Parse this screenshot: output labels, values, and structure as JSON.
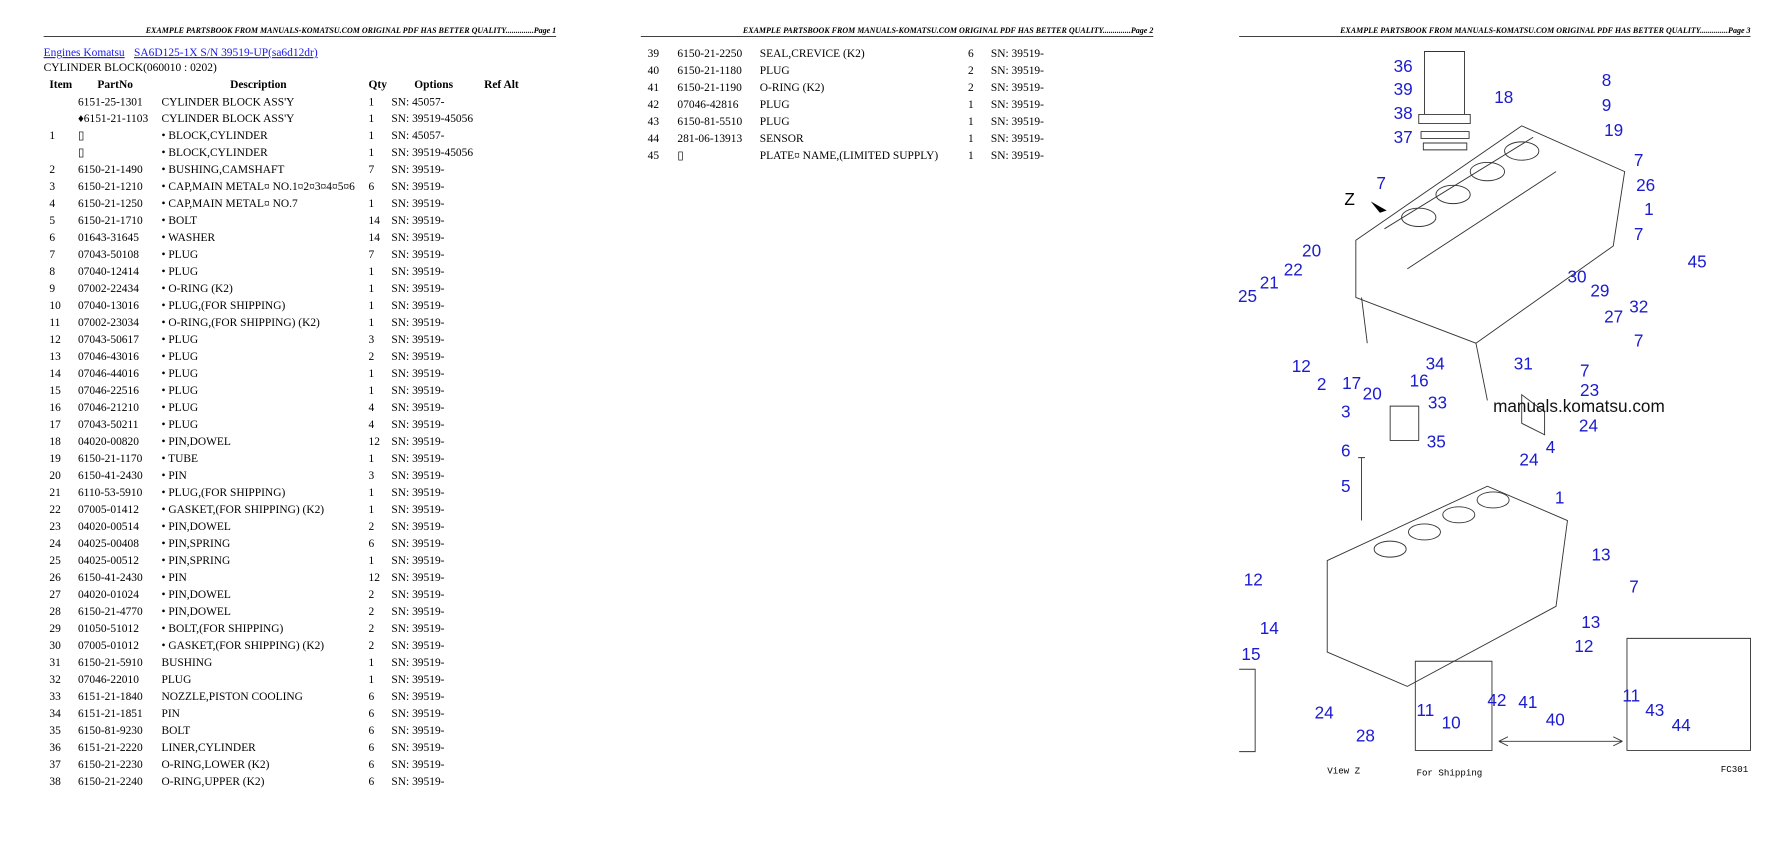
{
  "pages": [
    {
      "header": "EXAMPLE PARTSBOOK FROM MANUALS-KOMATSU.COM ORIGINAL PDF HAS BETTER QUALITY..............Page 1"
    },
    {
      "header": "EXAMPLE PARTSBOOK FROM MANUALS-KOMATSU.COM ORIGINAL PDF HAS BETTER QUALITY..............Page 2"
    },
    {
      "header": "EXAMPLE PARTSBOOK FROM MANUALS-KOMATSU.COM ORIGINAL PDF HAS BETTER QUALITY..............Page 3"
    }
  ],
  "breadcrumb": {
    "link1": "Engines Komatsu",
    "link2": "SA6D125-1X S/N 39519-UP(sa6d12dr)"
  },
  "subtitle": "CYLINDER BLOCK(060010 : 0202)",
  "table": {
    "columns": [
      "Item",
      "PartNo",
      "Description",
      "Qty",
      "Options",
      "Ref Alt"
    ],
    "rows": [
      [
        null,
        "6151-25-1301",
        "CYLINDER BLOCK ASS'Y",
        1,
        "SN: 45057-"
      ],
      [
        null,
        "♦6151-21-1103",
        "CYLINDER BLOCK ASS'Y",
        1,
        "SN: 39519-45056"
      ],
      [
        1,
        "▯",
        "• BLOCK,CYLINDER",
        1,
        "SN: 45057-"
      ],
      [
        null,
        "▯",
        "• BLOCK,CYLINDER",
        1,
        "SN: 39519-45056"
      ],
      [
        2,
        "6150-21-1490",
        "• BUSHING,CAMSHAFT",
        7,
        "SN: 39519-"
      ],
      [
        3,
        "6150-21-1210",
        "• CAP,MAIN METAL¤ NO.1¤2¤3¤4¤5¤6",
        6,
        "SN: 39519-"
      ],
      [
        4,
        "6150-21-1250",
        "• CAP,MAIN METAL¤ NO.7",
        1,
        "SN: 39519-"
      ],
      [
        5,
        "6150-21-1710",
        "• BOLT",
        14,
        "SN: 39519-"
      ],
      [
        6,
        "01643-31645",
        "• WASHER",
        14,
        "SN: 39519-"
      ],
      [
        7,
        "07043-50108",
        "• PLUG",
        7,
        "SN: 39519-"
      ],
      [
        8,
        "07040-12414",
        "• PLUG",
        1,
        "SN: 39519-"
      ],
      [
        9,
        "07002-22434",
        "• O-RING (K2)",
        1,
        "SN: 39519-"
      ],
      [
        10,
        "07040-13016",
        "• PLUG,(FOR SHIPPING)",
        1,
        "SN: 39519-"
      ],
      [
        11,
        "07002-23034",
        "• O-RING,(FOR SHIPPING) (K2)",
        1,
        "SN: 39519-"
      ],
      [
        12,
        "07043-50617",
        "• PLUG",
        3,
        "SN: 39519-"
      ],
      [
        13,
        "07046-43016",
        "• PLUG",
        2,
        "SN: 39519-"
      ],
      [
        14,
        "07046-44016",
        "• PLUG",
        1,
        "SN: 39519-"
      ],
      [
        15,
        "07046-22516",
        "• PLUG",
        1,
        "SN: 39519-"
      ],
      [
        16,
        "07046-21210",
        "• PLUG",
        4,
        "SN: 39519-"
      ],
      [
        17,
        "07043-50211",
        "• PLUG",
        4,
        "SN: 39519-"
      ],
      [
        18,
        "04020-00820",
        "• PIN,DOWEL",
        12,
        "SN: 39519-"
      ],
      [
        19,
        "6150-21-1170",
        "• TUBE",
        1,
        "SN: 39519-"
      ],
      [
        20,
        "6150-41-2430",
        "• PIN",
        3,
        "SN: 39519-"
      ],
      [
        21,
        "6110-53-5910",
        "• PLUG,(FOR SHIPPING)",
        1,
        "SN: 39519-"
      ],
      [
        22,
        "07005-01412",
        "• GASKET,(FOR SHIPPING) (K2)",
        1,
        "SN: 39519-"
      ],
      [
        23,
        "04020-00514",
        "• PIN,DOWEL",
        2,
        "SN: 39519-"
      ],
      [
        24,
        "04025-00408",
        "• PIN,SPRING",
        6,
        "SN: 39519-"
      ],
      [
        25,
        "04025-00512",
        "• PIN,SPRING",
        1,
        "SN: 39519-"
      ],
      [
        26,
        "6150-41-2430",
        "• PIN",
        12,
        "SN: 39519-"
      ],
      [
        27,
        "04020-01024",
        "• PIN,DOWEL",
        2,
        "SN: 39519-"
      ],
      [
        28,
        "6150-21-4770",
        "• PIN,DOWEL",
        2,
        "SN: 39519-"
      ],
      [
        29,
        "01050-51012",
        "• BOLT,(FOR SHIPPING)",
        2,
        "SN: 39519-"
      ],
      [
        30,
        "07005-01012",
        "• GASKET,(FOR SHIPPING) (K2)",
        2,
        "SN: 39519-"
      ],
      [
        31,
        "6150-21-5910",
        "BUSHING",
        1,
        "SN: 39519-"
      ],
      [
        32,
        "07046-22010",
        "PLUG",
        1,
        "SN: 39519-"
      ],
      [
        33,
        "6151-21-1840",
        "NOZZLE,PISTON COOLING",
        6,
        "SN: 39519-"
      ],
      [
        34,
        "6151-21-1851",
        "PIN",
        6,
        "SN: 39519-"
      ],
      [
        35,
        "6150-81-9230",
        "BOLT",
        6,
        "SN: 39519-"
      ],
      [
        36,
        "6151-21-2220",
        "LINER,CYLINDER",
        6,
        "SN: 39519-"
      ],
      [
        37,
        "6150-21-2230",
        "O-RING,LOWER (K2)",
        6,
        "SN: 39519-"
      ],
      [
        38,
        "6150-21-2240",
        "O-RING,UPPER (K2)",
        6,
        "SN: 39519-"
      ]
    ]
  },
  "table2": {
    "rows": [
      [
        39,
        "6150-21-2250",
        "SEAL,CREVICE (K2)",
        6,
        "SN: 39519-"
      ],
      [
        40,
        "6150-21-1180",
        "PLUG",
        2,
        "SN: 39519-"
      ],
      [
        41,
        "6150-21-1190",
        "O-RING (K2)",
        2,
        "SN: 39519-"
      ],
      [
        42,
        "07046-42816",
        "PLUG",
        1,
        "SN: 39519-"
      ],
      [
        43,
        "6150-81-5510",
        "PLUG",
        1,
        "SN: 39519-"
      ],
      [
        44,
        "281-06-13913",
        "SENSOR",
        1,
        "SN: 39519-"
      ],
      [
        45,
        "▯",
        "PLATE¤ NAME,(LIMITED SUPPLY)",
        1,
        "SN: 39519-"
      ]
    ]
  },
  "diagram": {
    "watermark": "manuals.komatsu.com",
    "view": "View Z",
    "shipping": "For Shipping",
    "code": "FC301",
    "labels": [
      "36",
      "39",
      "38",
      "37",
      "18",
      "8",
      "9",
      "19",
      "7",
      "26",
      "1",
      "7",
      "45",
      "Z",
      "7",
      "20",
      "22",
      "21",
      "25",
      "30",
      "29",
      "27",
      "32",
      "7",
      "12",
      "2",
      "17",
      "20",
      "16",
      "34",
      "31",
      "7",
      "23",
      "33",
      "3",
      "24",
      "35",
      "24",
      "4",
      "6",
      "5",
      "1",
      "13",
      "12",
      "7",
      "14",
      "13",
      "12",
      "15",
      "24",
      "28",
      "11",
      "10",
      "42",
      "41",
      "40",
      "11",
      "43",
      "44"
    ]
  }
}
